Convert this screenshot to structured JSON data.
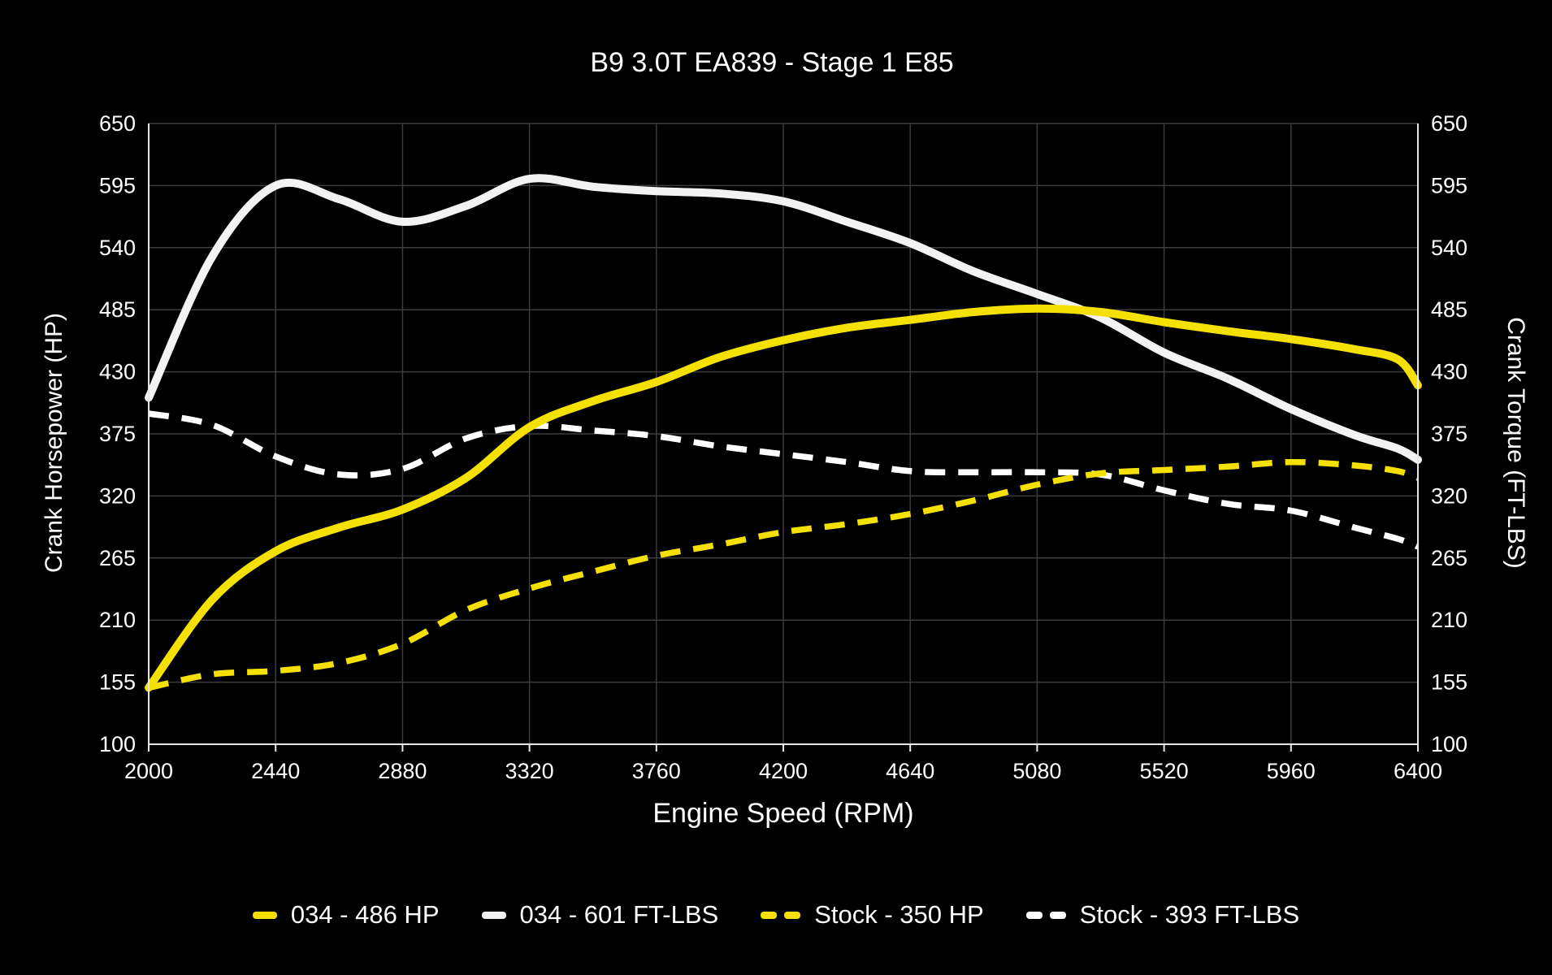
{
  "title": "B9 3.0T EA839 - Stage 1 E85",
  "colors": {
    "background": "#000000",
    "text": "#ffffff",
    "grid": "#3c3c3c",
    "axis_line": "#e8e8e8",
    "accent_yellow": "#f5e003",
    "curve_white": "#f2f2f2",
    "dashed_white": "#ffffff"
  },
  "chart_data": {
    "type": "line",
    "title": "B9 3.0T EA839 - Stage 1 E85",
    "x_label": "Engine Speed (RPM)",
    "y_left_label": "Crank Horsepower (HP)",
    "y_right_label": "Crank Torque (FT-LBS)",
    "x_range": [
      2000,
      6400
    ],
    "y_range": [
      100,
      650
    ],
    "x_ticks": [
      2000,
      2440,
      2880,
      3320,
      3760,
      4200,
      4640,
      5080,
      5520,
      5960,
      6400
    ],
    "y_ticks": [
      100,
      155,
      210,
      265,
      320,
      375,
      430,
      485,
      540,
      595,
      650
    ],
    "grid": true,
    "legend_position": "bottom",
    "x": [
      2000,
      2220,
      2440,
      2660,
      2880,
      3100,
      3320,
      3540,
      3760,
      3980,
      4200,
      4420,
      4640,
      4860,
      5080,
      5300,
      5520,
      5740,
      5960,
      6180,
      6330,
      6400
    ],
    "series": [
      {
        "name": "034 - 486 HP",
        "color": "#f5e003",
        "style": "solid",
        "axis": "hp",
        "peak": 486,
        "values": [
          150,
          228,
          271,
          292,
          308,
          336,
          381,
          404,
          421,
          443,
          458,
          469,
          476,
          483,
          486,
          483,
          474,
          466,
          459,
          450,
          441,
          418
        ]
      },
      {
        "name": "034 - 601 FT-LBS",
        "color": "#f2f2f2",
        "style": "solid",
        "axis": "torque",
        "peak": 601,
        "values": [
          407,
          532,
          595,
          583,
          563,
          577,
          601,
          594,
          590,
          588,
          581,
          563,
          544,
          519,
          499,
          478,
          447,
          424,
          397,
          374,
          362,
          352
        ]
      },
      {
        "name": "Stock - 350 HP",
        "color": "#f5e003",
        "style": "dashed",
        "axis": "hp",
        "peak": 350,
        "values": [
          150,
          162,
          165,
          172,
          189,
          219,
          238,
          253,
          267,
          277,
          288,
          295,
          304,
          316,
          330,
          340,
          343,
          346,
          350,
          347,
          342,
          336
        ]
      },
      {
        "name": "Stock - 393 FT-LBS",
        "color": "#ffffff",
        "style": "dashed",
        "axis": "torque",
        "peak": 393,
        "values": [
          393,
          383,
          355,
          339,
          344,
          371,
          382,
          378,
          373,
          364,
          357,
          350,
          342,
          341,
          341,
          339,
          325,
          313,
          307,
          292,
          282,
          275
        ]
      }
    ]
  }
}
